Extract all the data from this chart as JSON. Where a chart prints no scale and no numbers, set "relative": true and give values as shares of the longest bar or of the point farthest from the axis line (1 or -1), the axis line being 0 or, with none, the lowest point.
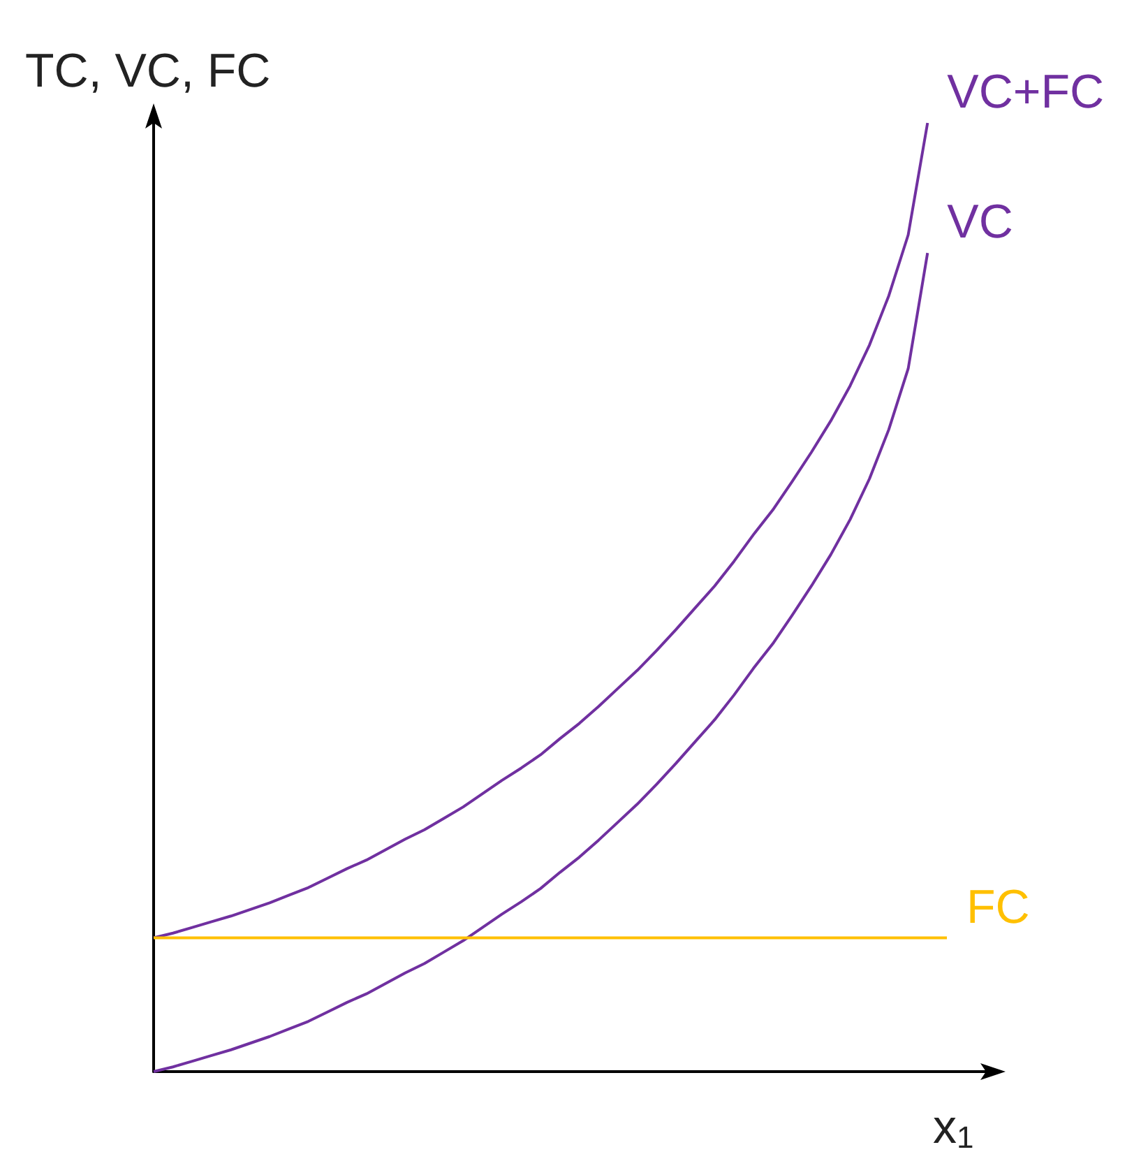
{
  "chart_data": {
    "type": "line",
    "relative": true,
    "ylabel": "TC, VC, FC",
    "xlabel": "x$_{1}$",
    "grid": false,
    "legend": false,
    "marker": "none",
    "line_style": "solid",
    "categories": [
      null,
      null,
      null,
      null,
      null,
      null,
      null,
      null,
      null,
      null,
      null,
      null,
      null,
      null,
      null,
      null,
      null,
      null,
      null,
      null,
      null,
      null,
      null,
      null,
      null,
      null,
      null,
      null,
      null,
      null,
      null,
      null,
      null,
      null,
      null,
      null,
      null,
      null,
      null,
      null,
      null,
      null
    ],
    "series": [
      {
        "name": "VC+FC",
        "color": "#7030a0",
        "values": [
          0.141,
          0.146,
          0.152,
          0.158,
          0.164,
          0.171,
          0.178,
          0.186,
          0.194,
          0.204,
          0.214,
          0.223,
          0.234,
          0.245,
          0.255,
          0.267,
          0.279,
          0.293,
          0.307,
          0.32,
          0.334,
          0.351,
          0.367,
          0.385,
          0.404,
          0.423,
          0.444,
          0.466,
          0.489,
          0.512,
          0.538,
          0.566,
          0.592,
          0.622,
          0.653,
          0.686,
          0.723,
          0.766,
          0.818,
          0.882,
          1,
          null
        ]
      },
      {
        "name": "VC",
        "color": "#7030a0",
        "values": [
          0,
          0.005,
          0.011,
          0.017,
          0.023,
          0.03,
          0.037,
          0.045,
          0.053,
          0.063,
          0.073,
          0.082,
          0.093,
          0.104,
          0.114,
          0.126,
          0.138,
          0.152,
          0.166,
          0.179,
          0.193,
          0.21,
          0.226,
          0.244,
          0.263,
          0.282,
          0.303,
          0.325,
          0.348,
          0.371,
          0.397,
          0.425,
          0.451,
          0.481,
          0.512,
          0.545,
          0.582,
          0.625,
          0.677,
          0.741,
          0.863,
          null
        ]
      },
      {
        "name": "FC",
        "color": "#ffc000",
        "values": [
          0.141,
          0.141,
          0.141,
          0.141,
          0.141,
          0.141,
          0.141,
          0.141,
          0.141,
          0.141,
          0.141,
          0.141,
          0.141,
          0.141,
          0.141,
          0.141,
          0.141,
          0.141,
          0.141,
          0.141,
          0.141,
          0.141,
          0.141,
          0.141,
          0.141,
          0.141,
          0.141,
          0.141,
          0.141,
          0.141,
          0.141,
          0.141,
          0.141,
          0.141,
          0.141,
          0.141,
          0.141,
          0.141,
          0.141,
          0.141,
          0.141,
          0.141
        ]
      }
    ]
  }
}
